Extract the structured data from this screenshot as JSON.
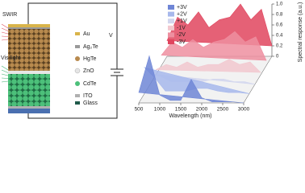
{
  "device": {
    "light_labels": [
      "SWIR",
      "Vis light"
    ],
    "layers": [
      "Au",
      "Ag₂Te",
      "HgTe",
      "ZnO",
      "CdTe",
      "ITO",
      "Glass"
    ],
    "voltage": "V"
  },
  "chart_data": {
    "type": "waterfall",
    "x_label": "Wavelength (nm)",
    "y_label": "Spectral response (a.u.)",
    "x": [
      500,
      750,
      1000,
      1250,
      1500,
      1750,
      2000,
      2250,
      2500,
      2750,
      3000
    ],
    "xlim": [
      500,
      3000
    ],
    "xticks": [
      500,
      1000,
      1500,
      2000,
      2500,
      3000
    ],
    "ylim": [
      0,
      1
    ],
    "yticks": [
      0,
      {
        "value": 0.2,
        "label": "0.2"
      },
      {
        "value": 0.4,
        "label": "0.4"
      },
      {
        "value": 0.6,
        "label": "0.6"
      },
      {
        "value": 0.8,
        "label": "0.8"
      },
      {
        "value": 1,
        "label": "1.0"
      }
    ],
    "series": [
      {
        "name": "+3V",
        "color": "#6f86d6",
        "values": [
          0.2,
          0.9,
          0.15,
          0.05,
          0.05,
          0.45,
          0.1,
          0.02,
          0.02,
          0.02,
          0
        ]
      },
      {
        "name": "+2V",
        "color": "#a7b8ec",
        "values": [
          0.5,
          0.3,
          0.05,
          0.05,
          0.05,
          0.1,
          0.1,
          0.05,
          0.02,
          0.02,
          0
        ]
      },
      {
        "name": "+1V",
        "color": "#d2d6ee",
        "values": [
          0.2,
          0.15,
          0.05,
          0.05,
          0.05,
          0.05,
          0.1,
          0.1,
          0.05,
          0.05,
          0
        ]
      },
      {
        "name": "-1V",
        "color": "#f2c8cf",
        "values": [
          0.1,
          0.2,
          0.15,
          0.25,
          0.15,
          0.2,
          0.2,
          0.3,
          0.2,
          0.25,
          0.05
        ]
      },
      {
        "name": "-2V",
        "color": "#ee8fa0",
        "values": [
          0.2,
          0.45,
          0.35,
          0.5,
          0.35,
          0.45,
          0.5,
          0.65,
          0.45,
          0.55,
          0.1
        ]
      },
      {
        "name": "-3V",
        "color": "#e0455e",
        "values": [
          0.3,
          0.75,
          0.6,
          0.85,
          0.55,
          0.7,
          0.75,
          1.0,
          0.7,
          0.9,
          0.2
        ]
      }
    ]
  }
}
